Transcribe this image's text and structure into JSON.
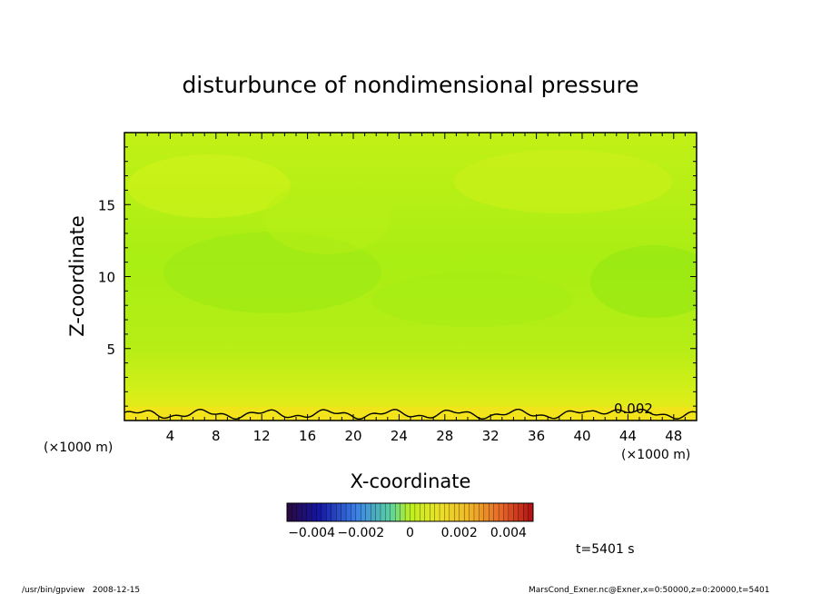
{
  "chart_data": {
    "type": "heatmap",
    "title": "disturbunce of nondimensional pressure",
    "xlabel": "X-coordinate",
    "ylabel": "Z-coordinate",
    "x_unit_left": "(×1000 m)",
    "x_unit_right": "(×1000 m)",
    "xlim": [
      0,
      50
    ],
    "ylim": [
      0,
      20
    ],
    "x_ticks": [
      4,
      8,
      12,
      16,
      20,
      24,
      28,
      32,
      36,
      40,
      44,
      48
    ],
    "x_tick_labels": [
      "4",
      "8",
      "12",
      "16",
      "20",
      "24",
      "28",
      "32",
      "36",
      "40",
      "44",
      "48"
    ],
    "y_ticks": [
      5,
      10,
      15
    ],
    "y_tick_labels": [
      "5",
      "10",
      "15"
    ],
    "contour_label": "0.002",
    "colorbar": {
      "range": [
        -0.005,
        0.005
      ],
      "tick_labels": [
        "−0.004",
        "−0.002",
        "0",
        "0.002",
        "0.004"
      ],
      "tick_values": [
        -0.004,
        -0.002,
        0,
        0.002,
        0.004
      ]
    },
    "colors": {
      "field_base": "#c6f215",
      "field_green": "#9cec14",
      "field_bottom": "#f0e81a",
      "contour": "#000000"
    }
  },
  "time_label": "t=5401 s",
  "footer_left": "/usr/bin/gpview   2008-12-15",
  "footer_right": "MarsCond_Exner.nc@Exner,x=0:50000,z=0:20000,t=5401"
}
